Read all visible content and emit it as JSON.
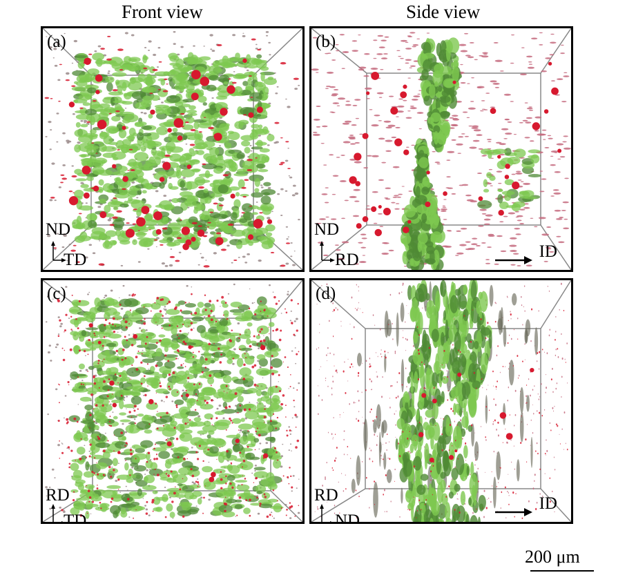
{
  "column_titles": {
    "front": "Front view",
    "side": "Side view"
  },
  "panels": {
    "a": {
      "tag": "(a)",
      "axis_vertical": "ND",
      "axis_horizontal": "TD"
    },
    "b": {
      "tag": "(b)",
      "axis_vertical": "ND",
      "axis_horizontal": "RD",
      "direction_label": "ID"
    },
    "c": {
      "tag": "(c)",
      "axis_vertical": "RD",
      "axis_horizontal": "TD"
    },
    "d": {
      "tag": "(d)",
      "axis_vertical": "RD",
      "axis_horizontal": "ND",
      "direction_label": "ID"
    }
  },
  "scale_bar": {
    "label": "200 μm"
  },
  "colors": {
    "green_phase": "#7ec850",
    "green_dark": "#4f8a35",
    "red_particles": "#d7192e",
    "frame": "#888888"
  }
}
